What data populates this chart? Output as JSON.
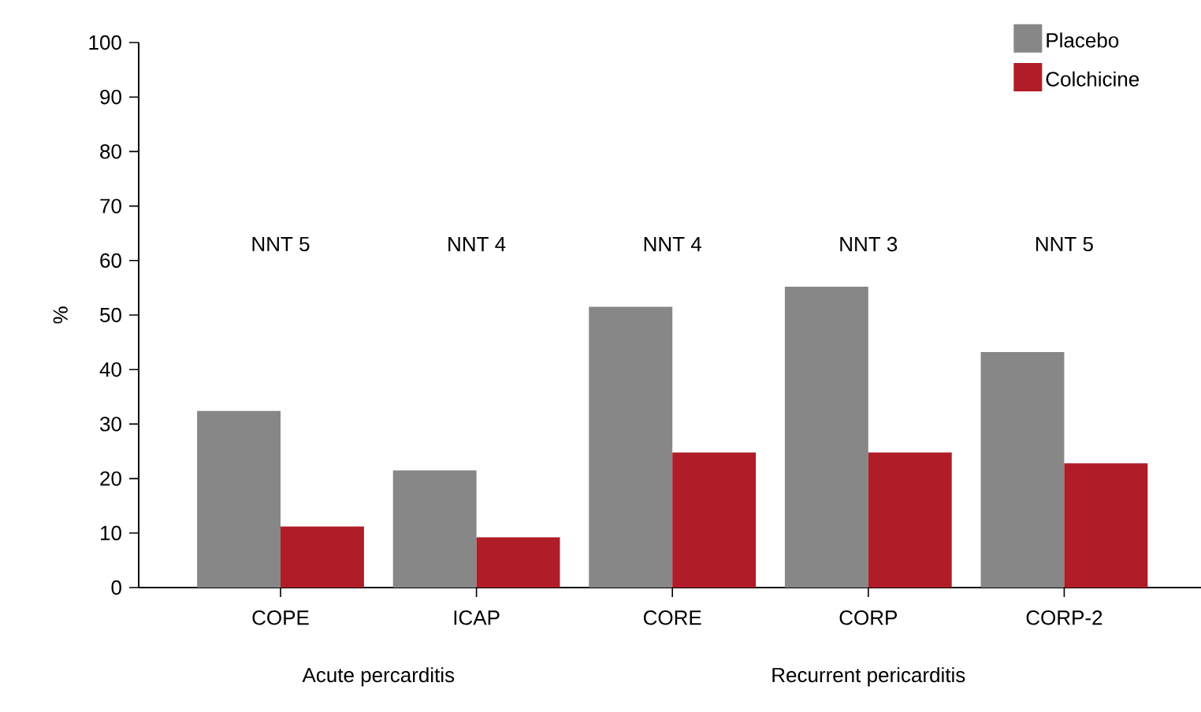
{
  "chart_data": {
    "type": "bar",
    "ylabel": "%",
    "categories": [
      "COPE",
      "ICAP",
      "CORE",
      "CORP",
      "CORP-2"
    ],
    "series": [
      {
        "name": "Placebo",
        "color": "#878787",
        "values": [
          32.4,
          21.5,
          51.5,
          55.2,
          43.2
        ]
      },
      {
        "name": "Colchicine",
        "color": "#b01c27",
        "values": [
          11.2,
          9.2,
          24.8,
          24.8,
          22.8
        ]
      }
    ],
    "ylim": [
      0,
      100
    ],
    "yticks": [
      0,
      10,
      20,
      30,
      40,
      50,
      60,
      70,
      80,
      90,
      100
    ],
    "legend": "top right",
    "grid": false,
    "annotations": [
      "NNT 5",
      "NNT 4",
      "NNT 4",
      "NNT 3",
      "NNT 5",
      "Acute percarditis",
      "Recurrent pericarditis"
    ]
  }
}
